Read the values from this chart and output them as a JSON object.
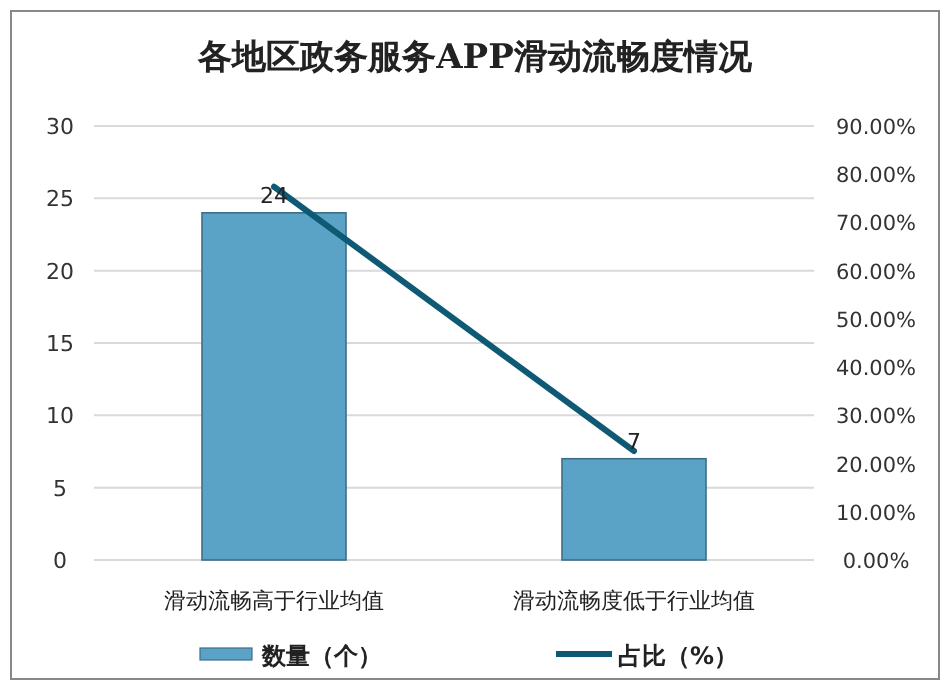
{
  "chart_data": {
    "type": "bar",
    "title": "各地区政务服务APP滑动流畅度情况",
    "categories": [
      "滑动流畅高于行业均值",
      "滑动流畅度低于行业均值"
    ],
    "series": [
      {
        "name": "数量（个）",
        "color": "#5ba3c6",
        "values": [
          24,
          7
        ],
        "value_labels": [
          "24",
          "7"
        ]
      },
      {
        "name": "占比（%）",
        "type": "line",
        "axis": "y2",
        "color": "#0e5a74",
        "values": [
          77.4,
          22.6
        ]
      }
    ],
    "ylim": [
      0,
      30
    ],
    "yticks": [
      0,
      5,
      10,
      15,
      20,
      25,
      30
    ],
    "y2lim": [
      0,
      90
    ],
    "y2ticks": [
      {
        "value": 0,
        "label": "0.00%"
      },
      {
        "value": 10,
        "label": "10.00%"
      },
      {
        "value": 20,
        "label": "20.00%"
      },
      {
        "value": 30,
        "label": "30.00%"
      },
      {
        "value": 40,
        "label": "40.00%"
      },
      {
        "value": 50,
        "label": "50.00%"
      },
      {
        "value": 60,
        "label": "60.00%"
      },
      {
        "value": 70,
        "label": "70.00%"
      },
      {
        "value": 80,
        "label": "80.00%"
      },
      {
        "value": 90,
        "label": "90.00%"
      }
    ],
    "grid": "y",
    "legend": "bottom"
  }
}
